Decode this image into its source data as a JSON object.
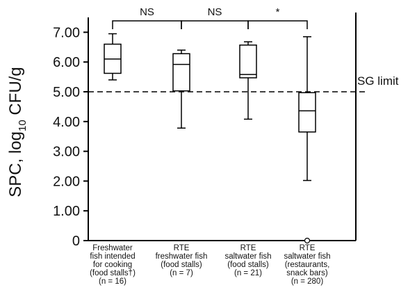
{
  "chart_data": {
    "type": "box",
    "ylabel_main": "SPC, log",
    "ylabel_sub": "10",
    "ylabel_tail": " CFU/g",
    "ylim": [
      0,
      7.5
    ],
    "yticks": [
      "0",
      "1.00",
      "2.00",
      "3.00",
      "4.00",
      "5.00",
      "6.00",
      "7.00"
    ],
    "ytick_values": [
      0,
      1,
      2,
      3,
      4,
      5,
      6,
      7
    ],
    "categories": [
      [
        "Freshwater",
        "fish intended",
        "for cooking",
        "(food stalls†)",
        "(n = 16)"
      ],
      [
        "RTE",
        "freshwater fish",
        "(food stalls)",
        "(n = 7)"
      ],
      [
        "RTE",
        "saltwater fish",
        "(food stalls)",
        "(n = 21)"
      ],
      [
        "RTE",
        "saltwater fish",
        "(restaurants,",
        "snack bars)",
        "(n = 280)"
      ]
    ],
    "boxes": [
      {
        "min": 5.4,
        "q1": 5.62,
        "median": 6.1,
        "q3": 6.6,
        "max": 6.95,
        "outliers": []
      },
      {
        "min": 3.78,
        "q1": 5.03,
        "median": 5.92,
        "q3": 6.28,
        "max": 6.4,
        "outliers": []
      },
      {
        "min": 4.08,
        "q1": 5.47,
        "median": 5.58,
        "q3": 6.57,
        "max": 6.68,
        "outliers": []
      },
      {
        "min": 2.02,
        "q1": 3.65,
        "median": 4.36,
        "q3": 4.97,
        "max": 6.85,
        "outliers": [
          0
        ]
      }
    ],
    "reference_line": {
      "value": 5.0,
      "label": "SG limit"
    },
    "comparisons": [
      {
        "from": 0,
        "to": 1,
        "label": "NS"
      },
      {
        "from": 1,
        "to": 2,
        "label": "NS"
      },
      {
        "from": 2,
        "to": 3,
        "label": "*"
      }
    ]
  }
}
